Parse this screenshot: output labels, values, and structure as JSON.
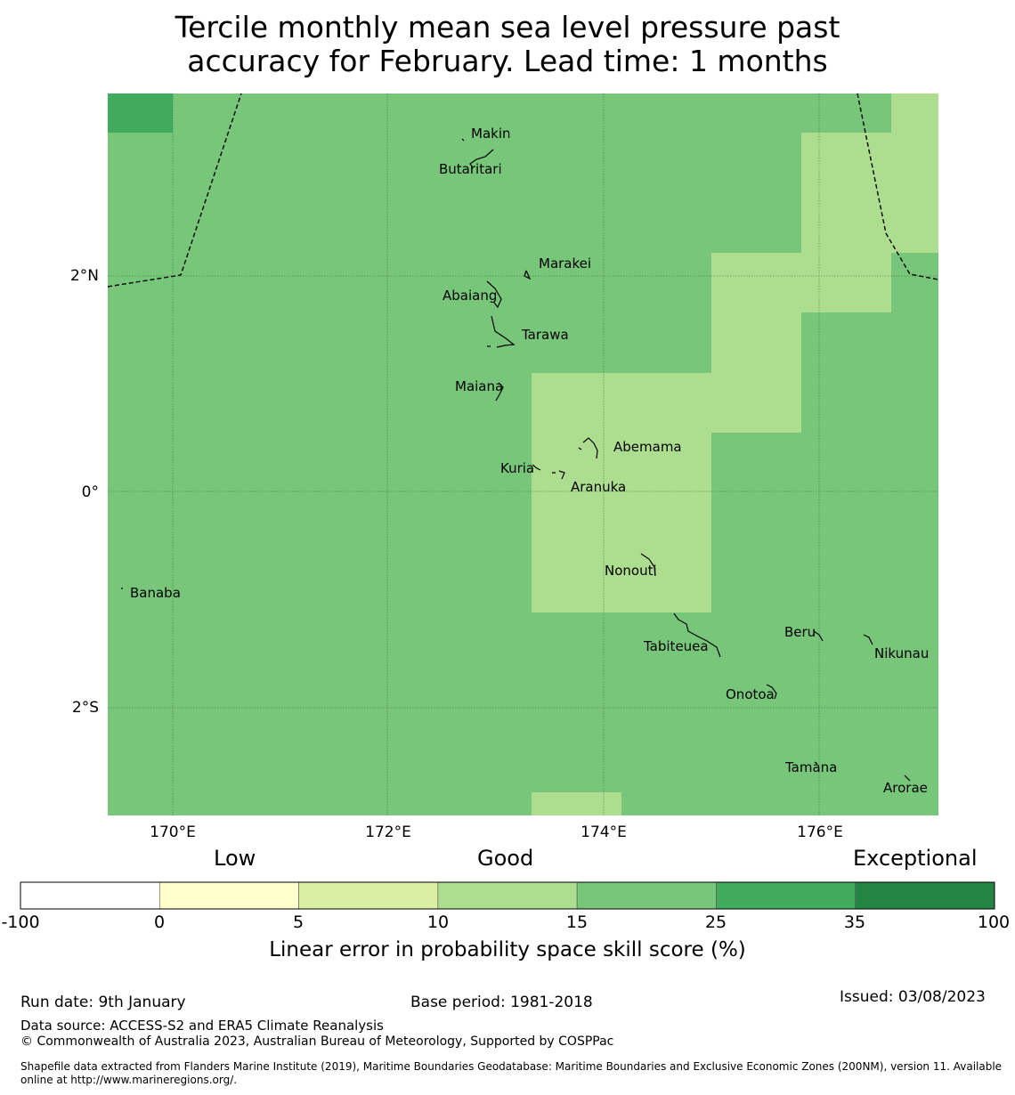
{
  "title_line1": "Tercile monthly mean sea level pressure past",
  "title_line2": "accuracy for February. Lead time: 1 months",
  "map": {
    "lon_labels": [
      "170°E",
      "172°E",
      "174°E",
      "176°E"
    ],
    "lat_labels": [
      "2°N",
      "0°",
      "2°S"
    ],
    "islands": [
      {
        "name": "Makin"
      },
      {
        "name": "Butaritari"
      },
      {
        "name": "Marakei"
      },
      {
        "name": "Abaiang"
      },
      {
        "name": "Tarawa"
      },
      {
        "name": "Maiana"
      },
      {
        "name": "Abemama"
      },
      {
        "name": "Kuria"
      },
      {
        "name": "Aranuka"
      },
      {
        "name": "Nonouti"
      },
      {
        "name": "Banaba"
      },
      {
        "name": "Tabiteuea"
      },
      {
        "name": "Beru"
      },
      {
        "name": "Nikunau"
      },
      {
        "name": "Onotoa"
      },
      {
        "name": "Tamana"
      },
      {
        "name": "Arorae"
      }
    ],
    "colors": {
      "c15_25": "#78c679",
      "c10_15": "#addd8e",
      "c25_35": "#41ab5d"
    }
  },
  "colorbar": {
    "categories": {
      "low": "Low",
      "good": "Good",
      "exceptional": "Exceptional"
    },
    "ticks": [
      "-100",
      "0",
      "5",
      "10",
      "15",
      "25",
      "35",
      "100"
    ],
    "colors": [
      "#ffffff",
      "#ffffcc",
      "#d9f0a3",
      "#addd8e",
      "#78c679",
      "#41ab5d",
      "#238443"
    ],
    "label": "Linear error in probability space skill score (%)"
  },
  "footer": {
    "run_date": "Run date: 9th January",
    "base_period": "Base period: 1981-2018",
    "issued": "Issued: 03/08/2023",
    "data_source": "Data source: ACCESS-S2 and ERA5 Climate Reanalysis",
    "copyright": "© Commonwealth of Australia 2023, Australian Bureau of Meteorology, Supported by COSPPac",
    "shapefile_line1": "Shapefile data extracted from Flanders Marine Institute (2019), Maritime Boundaries Geodatabase: Maritime Boundaries and Exclusive Economic Zones (200NM), version 11. Available",
    "shapefile_line2": "online at http://www.marineregions.org/."
  }
}
